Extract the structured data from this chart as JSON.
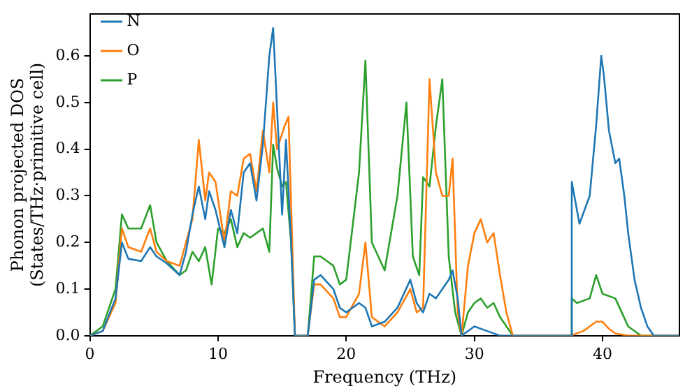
{
  "chart_data": {
    "type": "line",
    "xlabel": "Frequency (THz)",
    "ylabel": "Phonon projected DOS\n(States/THz·primitive cell)",
    "xlim": [
      0,
      46
    ],
    "ylim": [
      0,
      0.69
    ],
    "xticks": [
      0,
      10,
      20,
      30,
      40
    ],
    "yticks": [
      {
        "value": 0,
        "label": "0.0"
      },
      {
        "value": 0.1,
        "label": "0.1"
      },
      {
        "value": 0.2,
        "label": "0.2"
      },
      {
        "value": 0.3,
        "label": "0.3"
      },
      {
        "value": 0.4,
        "label": "0.4"
      },
      {
        "value": 0.5,
        "label": "0.5"
      },
      {
        "value": 0.6,
        "label": "0.6"
      }
    ],
    "grid": false,
    "legend": "top left",
    "marker": "none",
    "line_style": "solid",
    "series": [
      {
        "name": "N",
        "color": "#1f77b4",
        "x": [
          0,
          1,
          2,
          2.5,
          3,
          4,
          4.7,
          5.2,
          6,
          7,
          7.5,
          8,
          8.5,
          9,
          9.3,
          9.8,
          10.5,
          11,
          11.5,
          12,
          12.5,
          13,
          13.5,
          14,
          14.3,
          14.6,
          15,
          15.3,
          15.7,
          16,
          17,
          17.5,
          18,
          19,
          19.5,
          20,
          20.5,
          21,
          21.5,
          22,
          23,
          24,
          25,
          25.5,
          26,
          26.5,
          27,
          27.5,
          28,
          28.3,
          28.7,
          29,
          30,
          31,
          32,
          37.5,
          37.6,
          38.2,
          39,
          39.5,
          39.9,
          40.1,
          40.5,
          41,
          41.3,
          41.7,
          42,
          42.5,
          43,
          43.5,
          44,
          46
        ],
        "values": [
          0,
          0.01,
          0.08,
          0.2,
          0.165,
          0.16,
          0.19,
          0.17,
          0.155,
          0.13,
          0.18,
          0.26,
          0.32,
          0.25,
          0.31,
          0.27,
          0.19,
          0.27,
          0.22,
          0.35,
          0.37,
          0.29,
          0.41,
          0.6,
          0.66,
          0.49,
          0.26,
          0.42,
          0.2,
          0,
          0,
          0.12,
          0.13,
          0.1,
          0.06,
          0.05,
          0.06,
          0.07,
          0.06,
          0.02,
          0.03,
          0.06,
          0.12,
          0.07,
          0.05,
          0.09,
          0.08,
          0.1,
          0.12,
          0.14,
          0.08,
          0,
          0.02,
          0.01,
          0,
          0,
          0.33,
          0.24,
          0.3,
          0.45,
          0.6,
          0.56,
          0.44,
          0.37,
          0.38,
          0.3,
          0.22,
          0.12,
          0.06,
          0.02,
          0,
          0
        ]
      },
      {
        "name": "O",
        "color": "#ff7f0e",
        "x": [
          0,
          1,
          2,
          2.5,
          3,
          4,
          4.7,
          5.2,
          6,
          7,
          7.5,
          8,
          8.5,
          9,
          9.3,
          9.8,
          10.5,
          11,
          11.5,
          12,
          12.5,
          13,
          13.5,
          14,
          14.3,
          14.6,
          15.2,
          15.5,
          16,
          17,
          17.5,
          18,
          19,
          19.5,
          20,
          21,
          21.5,
          22,
          23,
          24,
          25,
          25.5,
          26,
          26.5,
          27,
          27.5,
          28,
          28.3,
          28.7,
          29,
          29.5,
          30,
          30.5,
          31,
          31.5,
          32,
          32.5,
          33,
          37.5,
          38.5,
          39,
          39.5,
          40,
          40.5,
          41,
          42,
          46
        ],
        "values": [
          0,
          0.01,
          0.07,
          0.23,
          0.19,
          0.18,
          0.23,
          0.18,
          0.16,
          0.15,
          0.2,
          0.25,
          0.42,
          0.29,
          0.35,
          0.33,
          0.2,
          0.31,
          0.3,
          0.38,
          0.39,
          0.31,
          0.44,
          0.35,
          0.5,
          0.4,
          0.45,
          0.47,
          0,
          0,
          0.11,
          0.11,
          0.08,
          0.04,
          0.04,
          0.09,
          0.2,
          0.04,
          0.02,
          0.05,
          0.1,
          0.05,
          0.06,
          0.55,
          0.35,
          0.3,
          0.3,
          0.38,
          0.05,
          0,
          0.15,
          0.22,
          0.25,
          0.2,
          0.22,
          0.13,
          0.05,
          0,
          0,
          0.01,
          0.02,
          0.03,
          0.03,
          0.015,
          0.005,
          0,
          0
        ]
      },
      {
        "name": "P",
        "color": "#2ca02c",
        "x": [
          0,
          1,
          2,
          2.5,
          3,
          4,
          4.7,
          5.2,
          6,
          7,
          7.5,
          8,
          8.5,
          9,
          9.5,
          10,
          10.5,
          11,
          11.5,
          12,
          12.5,
          13,
          13.5,
          14,
          14.3,
          14.6,
          15,
          15.3,
          15.7,
          16,
          17,
          17.5,
          18,
          19,
          19.5,
          20,
          21,
          21.5,
          22,
          23,
          24,
          24.7,
          25.2,
          25.7,
          26,
          26.5,
          27,
          27.5,
          28,
          28.5,
          29,
          29.5,
          30,
          30.5,
          31,
          31.5,
          32,
          33,
          37.5,
          37.6,
          38,
          39,
          39.5,
          40,
          41,
          41.5,
          42,
          43,
          46
        ],
        "values": [
          0,
          0.02,
          0.1,
          0.26,
          0.23,
          0.23,
          0.28,
          0.2,
          0.16,
          0.13,
          0.14,
          0.18,
          0.16,
          0.19,
          0.11,
          0.23,
          0.22,
          0.25,
          0.19,
          0.22,
          0.21,
          0.22,
          0.23,
          0.18,
          0.41,
          0.36,
          0.32,
          0.33,
          0.2,
          0,
          0,
          0.17,
          0.17,
          0.15,
          0.11,
          0.12,
          0.35,
          0.59,
          0.2,
          0.14,
          0.3,
          0.5,
          0.17,
          0.13,
          0.34,
          0.32,
          0.45,
          0.55,
          0.17,
          0.05,
          0,
          0.05,
          0.07,
          0.08,
          0.06,
          0.07,
          0.04,
          0,
          0,
          0.08,
          0.07,
          0.08,
          0.13,
          0.09,
          0.08,
          0.05,
          0.02,
          0,
          0
        ]
      }
    ]
  }
}
